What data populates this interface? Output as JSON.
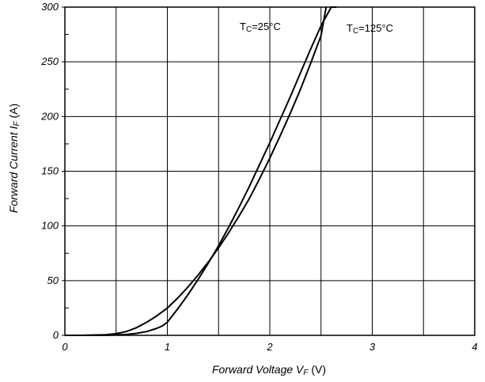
{
  "chart_data": {
    "type": "line",
    "xlabel": {
      "main": "Forward Voltage V",
      "sub": "F",
      "unit": " (V)"
    },
    "ylabel": {
      "main": "Forward Current I",
      "sub": "F",
      "unit": " (A)"
    },
    "xlim": [
      0,
      4
    ],
    "ylim": [
      0,
      300
    ],
    "x_major_ticks": [
      0,
      1,
      2,
      3,
      4
    ],
    "x_minor_ticks": [
      0.5,
      1.5,
      2.5,
      3.5
    ],
    "y_major_ticks": [
      0,
      50,
      100,
      150,
      200,
      250,
      300
    ],
    "y_minor_ticks": [
      25,
      75,
      125,
      175,
      225,
      275
    ],
    "x_tick_labels": [
      "0",
      "1",
      "2",
      "3",
      "4"
    ],
    "y_tick_labels": [
      "0",
      "50",
      "100",
      "150",
      "200",
      "250",
      "300"
    ],
    "grid": true,
    "series": [
      {
        "name": "Tc=25°C",
        "label_main": "T",
        "label_sub": "C",
        "label_rest": "=25°C",
        "x": [
          0.0,
          0.2,
          0.4,
          0.5,
          0.6,
          0.7,
          0.8,
          0.9,
          1.0,
          1.1,
          1.2,
          1.3,
          1.4,
          1.5,
          1.6,
          1.7,
          1.8,
          1.9,
          2.0,
          2.1,
          2.2,
          2.3,
          2.4,
          2.5,
          2.55
        ],
        "y": [
          0,
          0.1,
          0.6,
          1.5,
          3.5,
          7,
          12,
          18,
          25,
          34,
          44,
          55,
          67,
          80,
          94,
          109,
          125,
          143,
          162,
          182,
          203,
          225,
          249,
          274,
          300
        ]
      },
      {
        "name": "Tc=125°C",
        "label_main": "T",
        "label_sub": "C",
        "label_rest": "=125°C",
        "x": [
          0.0,
          0.4,
          0.6,
          0.7,
          0.8,
          0.9,
          0.95,
          1.0,
          1.1,
          1.2,
          1.3,
          1.4,
          1.5,
          1.6,
          1.7,
          1.8,
          1.9,
          2.0,
          2.1,
          2.2,
          2.3,
          2.4,
          2.5,
          2.6,
          2.65
        ],
        "y": [
          0,
          0.1,
          0.8,
          1.8,
          3.5,
          6.5,
          8.5,
          12,
          24,
          37,
          51,
          66,
          82,
          99,
          117,
          136,
          156,
          176,
          197,
          218,
          240,
          262,
          283,
          300,
          300
        ]
      }
    ]
  }
}
